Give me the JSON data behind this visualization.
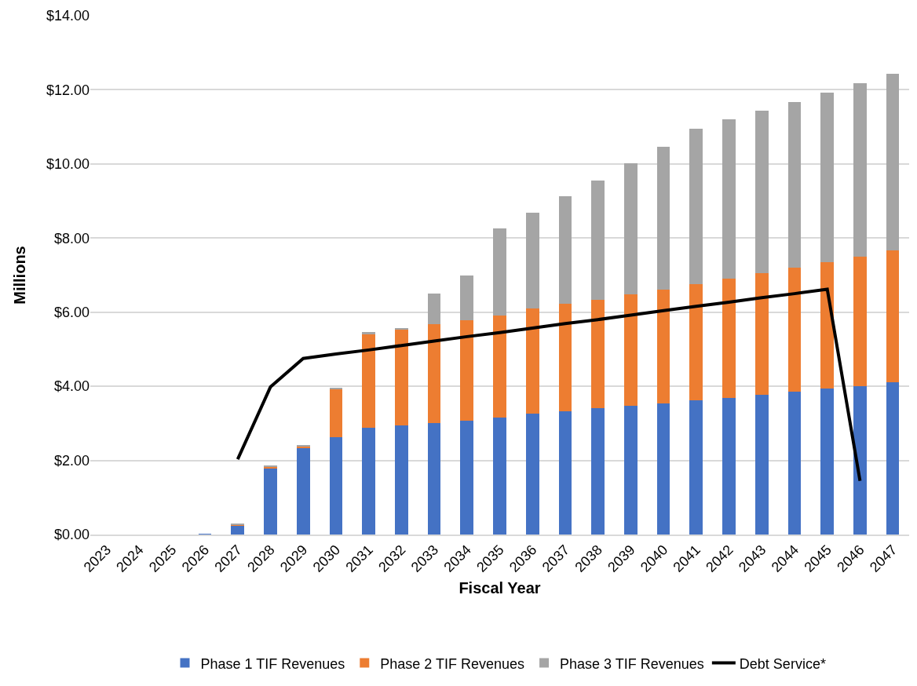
{
  "chart_data": {
    "type": "bar",
    "stacked": true,
    "xlabel": "Fiscal Year",
    "ylabel": "Millions",
    "categories": [
      "2023",
      "2024",
      "2025",
      "2026",
      "2027",
      "2028",
      "2029",
      "2030",
      "2031",
      "2032",
      "2033",
      "2034",
      "2035",
      "2036",
      "2037",
      "2038",
      "2039",
      "2040",
      "2041",
      "2042",
      "2043",
      "2044",
      "2045",
      "2046",
      "2047"
    ],
    "series": [
      {
        "name": "Phase 1 TIF Revenues",
        "color": "#4472c4",
        "values": [
          0,
          0,
          0,
          0.02,
          0.25,
          1.8,
          2.34,
          2.63,
          2.88,
          2.95,
          3.01,
          3.07,
          3.15,
          3.26,
          3.33,
          3.41,
          3.47,
          3.54,
          3.62,
          3.69,
          3.78,
          3.86,
          3.93,
          4.01,
          4.11
        ]
      },
      {
        "name": "Phase 2 TIF Revenues",
        "color": "#ed7d31",
        "values": [
          0,
          0,
          0,
          0,
          0.02,
          0.03,
          0.04,
          1.29,
          2.53,
          2.57,
          2.67,
          2.72,
          2.76,
          2.83,
          2.89,
          2.93,
          3.01,
          3.07,
          3.14,
          3.21,
          3.27,
          3.34,
          3.42,
          3.49,
          3.55
        ]
      },
      {
        "name": "Phase 3 TIF Revenues",
        "color": "#a5a5a5",
        "values": [
          0,
          0,
          0,
          0,
          0.02,
          0.02,
          0.03,
          0.02,
          0.05,
          0.06,
          0.83,
          1.2,
          2.35,
          2.6,
          2.9,
          3.21,
          3.53,
          3.86,
          4.2,
          4.3,
          4.39,
          4.48,
          4.58,
          4.68,
          4.77
        ]
      },
      {
        "name": "Debt Service*",
        "type": "line",
        "color": "#000000",
        "values": [
          null,
          null,
          null,
          null,
          2.03,
          3.98,
          4.75,
          4.87,
          4.98,
          5.1,
          5.22,
          5.34,
          5.45,
          5.57,
          5.69,
          5.8,
          5.92,
          6.04,
          6.16,
          6.27,
          6.39,
          6.5,
          6.62,
          1.45,
          null
        ]
      }
    ],
    "ylim": [
      0,
      14
    ],
    "yticks": [
      {
        "value": 0,
        "label": "$0.00"
      },
      {
        "value": 2,
        "label": "$2.00"
      },
      {
        "value": 4,
        "label": "$4.00"
      },
      {
        "value": 6,
        "label": "$6.00"
      },
      {
        "value": 8,
        "label": "$8.00"
      },
      {
        "value": 10,
        "label": "$10.00"
      },
      {
        "value": 12,
        "label": "$12.00"
      },
      {
        "value": 14,
        "label": "$14.00"
      }
    ],
    "grid": "y",
    "legend": "bottom",
    "marker": "none",
    "line_style": "solid"
  }
}
